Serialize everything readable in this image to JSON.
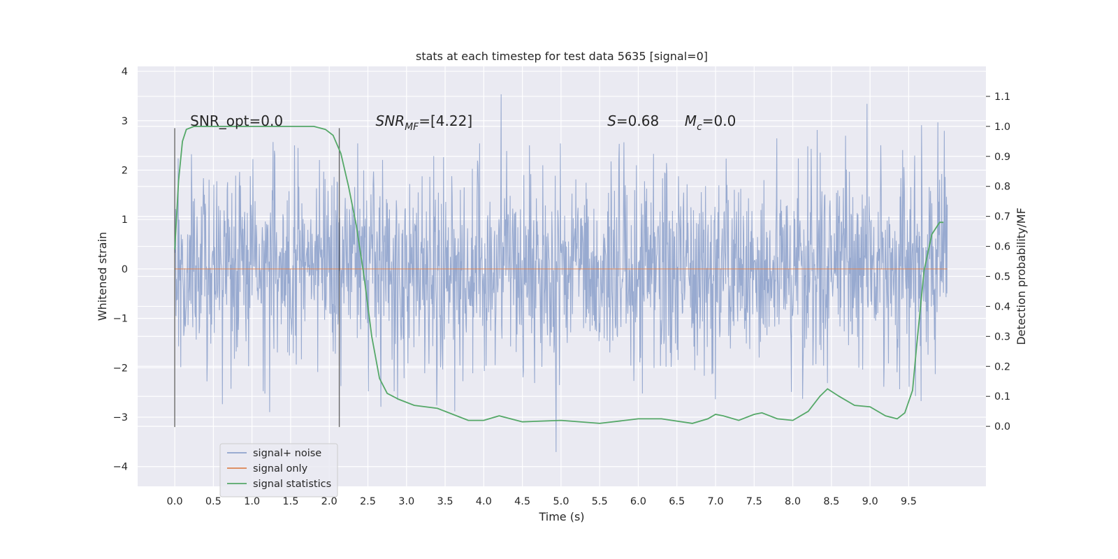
{
  "chart_data": {
    "type": "line",
    "title": "stats at each timestep for test data 5635 [signal=0]",
    "xlabel": "Time (s)",
    "ylabel": "Whitened strain",
    "ylabel_right": "Detection probability/MF",
    "xlim": [
      -0.48,
      10.5
    ],
    "ylim": [
      -4.4,
      4.1
    ],
    "ylim_right": [
      -0.2,
      1.2
    ],
    "x_ticks": [
      "0.0",
      "0.5",
      "1.0",
      "1.5",
      "2.0",
      "2.5",
      "3.0",
      "3.5",
      "4.0",
      "4.5",
      "5.0",
      "5.5",
      "6.0",
      "6.5",
      "7.0",
      "7.5",
      "8.0",
      "8.5",
      "9.0",
      "9.5"
    ],
    "y_ticks": [
      "4",
      "3",
      "2",
      "1",
      "0",
      "−1",
      "−2",
      "−3",
      "−4"
    ],
    "y_ticks_right": [
      "1.1",
      "1.0",
      "0.9",
      "0.8",
      "0.7",
      "0.6",
      "0.5",
      "0.4",
      "0.3",
      "0.2",
      "0.1",
      "0.0"
    ],
    "grid": true,
    "legend_placement": "lower left",
    "colors": {
      "signal_noise": "#8fa3cc",
      "signal_only": "#dd8452",
      "signal_statistics": "#55a868",
      "background": "#eaeaf2",
      "grid": "#ffffff",
      "marker_lines": "#3a3a3a"
    },
    "noise": {
      "x_range": [
        0.0,
        10.0
      ],
      "typical_range": [
        -1.7,
        1.9
      ],
      "extreme_range": [
        -4.1,
        3.7
      ]
    },
    "signal_only": {
      "x": [
        0.0,
        10.0
      ],
      "y": [
        0.0,
        0.0
      ]
    },
    "marker_lines_x": [
      0.0,
      2.13
    ],
    "series": [
      {
        "name": "signal+ noise",
        "kind": "strain noise"
      },
      {
        "name": "signal only",
        "values_x": [
          0.0,
          10.0
        ],
        "values_y": [
          0.0,
          0.0
        ]
      },
      {
        "name": "signal statistics",
        "axis": "right",
        "x": [
          0.0,
          0.05,
          0.1,
          0.15,
          0.25,
          0.5,
          1.0,
          1.5,
          1.8,
          1.95,
          2.05,
          2.15,
          2.25,
          2.35,
          2.45,
          2.55,
          2.65,
          2.75,
          2.9,
          3.1,
          3.4,
          3.6,
          3.8,
          4.0,
          4.2,
          4.5,
          5.0,
          5.5,
          6.0,
          6.3,
          6.7,
          6.9,
          7.0,
          7.1,
          7.3,
          7.5,
          7.6,
          7.8,
          8.0,
          8.2,
          8.35,
          8.45,
          8.6,
          8.8,
          9.0,
          9.2,
          9.35,
          9.45,
          9.55,
          9.6,
          9.7,
          9.8,
          9.9,
          9.95
        ],
        "y": [
          0.59,
          0.82,
          0.95,
          0.99,
          1.0,
          1.0,
          1.0,
          1.0,
          1.0,
          0.99,
          0.97,
          0.91,
          0.8,
          0.67,
          0.5,
          0.3,
          0.16,
          0.11,
          0.09,
          0.07,
          0.06,
          0.04,
          0.02,
          0.02,
          0.035,
          0.015,
          0.02,
          0.01,
          0.025,
          0.025,
          0.01,
          0.025,
          0.04,
          0.035,
          0.02,
          0.04,
          0.045,
          0.025,
          0.02,
          0.05,
          0.1,
          0.125,
          0.1,
          0.07,
          0.065,
          0.035,
          0.025,
          0.045,
          0.12,
          0.26,
          0.52,
          0.64,
          0.68,
          0.68
        ]
      }
    ],
    "annotations": [
      {
        "x": 0.2,
        "y": 3.0,
        "text": "SNR_opt=0.0",
        "math": false
      },
      {
        "x": 2.6,
        "y": 3.0,
        "text": "SNR_MF=[4.22]",
        "math": true,
        "base": "SNR",
        "sub": "MF",
        "rest": "=[4.22]"
      },
      {
        "x": 5.6,
        "y": 3.0,
        "text": "S=0.68",
        "math": true,
        "base": "S",
        "sub": "",
        "rest": "=0.68"
      },
      {
        "x": 6.6,
        "y": 3.0,
        "text": "M_c=0.0",
        "math": true,
        "base": "M",
        "sub": "c",
        "rest": "=0.0"
      }
    ]
  }
}
